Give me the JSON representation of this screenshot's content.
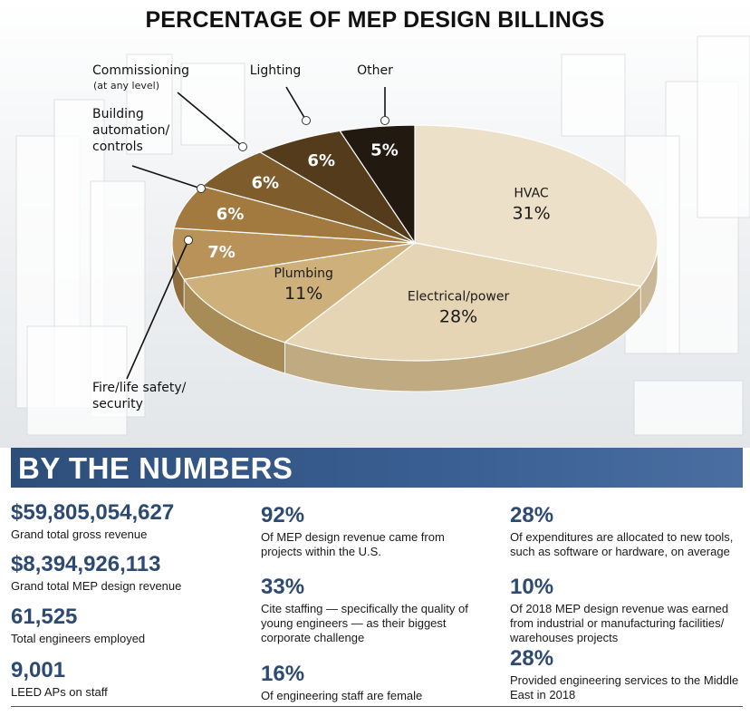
{
  "chart_data": {
    "type": "pie",
    "title": "PERCENTAGE OF MEP DESIGN BILLINGS",
    "slices": [
      {
        "label": "HVAC",
        "value": 31,
        "display": "31%",
        "color": "#ede0c8",
        "side": "#c9b795"
      },
      {
        "label": "Electrical/power",
        "value": 28,
        "display": "28%",
        "color": "#e6d5b4",
        "side": "#c0aa82"
      },
      {
        "label": "Plumbing",
        "value": 11,
        "display": "11%",
        "color": "#cdb07a",
        "side": "#a88c58"
      },
      {
        "label": "Fire/life safety/ security",
        "value": 7,
        "display": "7%",
        "color": "#b89258",
        "side": "#8f6f40"
      },
      {
        "label": "Building automation/ controls",
        "value": 6,
        "display": "6%",
        "color": "#a27a40",
        "side": "#7a5a2c"
      },
      {
        "label": "Commissioning",
        "sublabel": "(at any level)",
        "value": 6,
        "display": "6%",
        "color": "#7e5c2c",
        "side": "#5c421e"
      },
      {
        "label": "Lighting",
        "value": 6,
        "display": "6%",
        "color": "#533b1c",
        "side": "#3b2912"
      },
      {
        "label": "Other",
        "value": 5,
        "display": "5%",
        "color": "#221a10",
        "side": "#15100a"
      }
    ]
  },
  "by_the_numbers": {
    "title": "BY THE NUMBERS",
    "stats": [
      {
        "value": "$59,805,054,627",
        "desc": "Grand total gross revenue"
      },
      {
        "value": "$8,394,926,113",
        "desc": "Grand total MEP design revenue"
      },
      {
        "value": "61,525",
        "desc": "Total engineers employed"
      },
      {
        "value": "9,001",
        "desc": "LEED APs on staff"
      },
      {
        "value": "92%",
        "desc": "Of MEP design revenue came from projects within the U.S."
      },
      {
        "value": "33%",
        "desc": "Cite staffing — specifically the quality of young engineers — as their biggest corporate challenge"
      },
      {
        "value": "16%",
        "desc": "Of engineering staff are female"
      },
      {
        "value": "28%",
        "desc": "Of expenditures are allocated to new tools, such as software or hardware, on average"
      },
      {
        "value": "10%",
        "desc": "Of 2018 MEP design revenue was earned from industrial or manufacturing facilities/ warehouses projects"
      },
      {
        "value": "28%",
        "desc": "Provided engineering services to the Middle East in 2018"
      }
    ]
  }
}
